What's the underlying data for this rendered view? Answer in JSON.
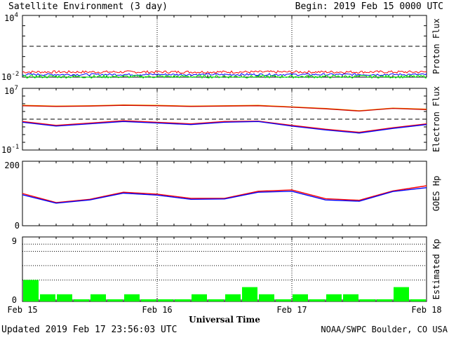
{
  "header": {
    "title": "Satellite Environment (3 day)",
    "begin": "Begin:  2019 Feb 15 0000 UTC"
  },
  "footer": {
    "updated": "Updated 2019 Feb 17 23:56:03 UTC",
    "credit": "NOAA/SWPC Boulder, CO USA"
  },
  "x_axis": {
    "title": "Universal Time",
    "ticks": [
      "Feb 15",
      "Feb 16",
      "Feb 17",
      "Feb 18"
    ],
    "range_days": [
      0,
      3
    ]
  },
  "colors": {
    "red": "#ff0000",
    "blue": "#0000ff",
    "green": "#00ff00",
    "orange": "#ffa500",
    "darkred": "#cc0000",
    "black": "#000000"
  },
  "chart_data": [
    {
      "type": "line",
      "ylabel": "Proton Flux",
      "scale": "log",
      "y_tick_labels": [
        {
          "base": "10",
          "exp": "4"
        },
        {
          "base": "10",
          "exp": "-2"
        }
      ],
      "ylim_log10": [
        -2,
        4
      ],
      "threshold_log10": 1,
      "series": [
        {
          "color": "red",
          "log10_level": -1.5,
          "noise": 0.25
        },
        {
          "color": "blue",
          "log10_level": -1.75,
          "noise": 0.2
        },
        {
          "color": "green",
          "log10_level": -1.95,
          "noise": 0.3
        }
      ]
    },
    {
      "type": "line",
      "ylabel": "Electron Flux",
      "scale": "log",
      "y_tick_labels": [
        {
          "base": "10",
          "exp": "7"
        },
        {
          "base": "10",
          "exp": "-1"
        }
      ],
      "ylim_log10": [
        -1,
        7
      ],
      "threshold_log10": 3,
      "x_days": [
        0,
        0.25,
        0.5,
        0.75,
        1.0,
        1.25,
        1.5,
        1.75,
        2.0,
        2.25,
        2.5,
        2.75,
        3.0
      ],
      "series": [
        {
          "color": "orange",
          "log10_values": [
            4.8,
            4.7,
            4.75,
            4.85,
            4.8,
            4.7,
            4.75,
            4.8,
            4.6,
            4.4,
            4.1,
            4.45,
            4.3
          ]
        },
        {
          "color": "darkred",
          "log10_values": [
            4.75,
            4.65,
            4.7,
            4.8,
            4.75,
            4.65,
            4.7,
            4.75,
            4.55,
            4.35,
            4.05,
            4.4,
            4.25
          ]
        },
        {
          "color": "red",
          "log10_values": [
            2.7,
            2.2,
            2.5,
            2.8,
            2.6,
            2.4,
            2.7,
            2.75,
            2.2,
            1.7,
            1.3,
            1.9,
            2.4
          ]
        },
        {
          "color": "blue",
          "log10_values": [
            2.6,
            2.1,
            2.4,
            2.7,
            2.5,
            2.3,
            2.6,
            2.7,
            2.1,
            1.6,
            1.2,
            1.8,
            2.3
          ]
        }
      ]
    },
    {
      "type": "line",
      "ylabel": "GOES Hp",
      "scale": "linear",
      "y_tick_labels": [
        "200",
        "0"
      ],
      "ylim": [
        0,
        200
      ],
      "x_days": [
        0,
        0.25,
        0.5,
        0.75,
        1.0,
        1.25,
        1.5,
        1.75,
        2.0,
        2.25,
        2.5,
        2.75,
        3.0
      ],
      "series": [
        {
          "color": "red",
          "values": [
            100,
            72,
            82,
            104,
            98,
            85,
            85,
            107,
            111,
            84,
            79,
            108,
            124
          ]
        },
        {
          "color": "blue",
          "values": [
            96,
            70,
            80,
            101,
            95,
            82,
            83,
            104,
            107,
            80,
            76,
            106,
            118
          ]
        }
      ]
    },
    {
      "type": "bar",
      "ylabel": "Estimated Kp",
      "y_tick_labels": [
        "9",
        "0"
      ],
      "ylim": [
        0,
        9
      ],
      "bar_color": "green",
      "interval_hours": 3,
      "values": [
        3,
        1,
        1,
        0.3,
        1,
        0.3,
        1,
        0.3,
        0.3,
        0.3,
        1,
        0.3,
        1,
        2,
        1,
        0.3,
        1,
        0.3,
        1,
        1,
        0.3,
        0.3,
        2,
        0.3
      ]
    }
  ]
}
